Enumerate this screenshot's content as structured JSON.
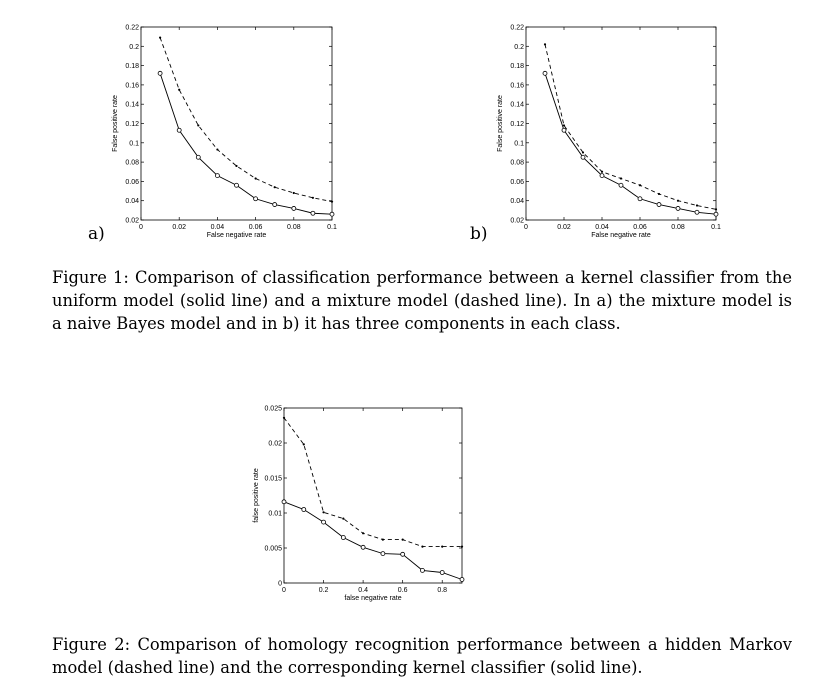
{
  "chart_data": [
    {
      "panel_label": "a)",
      "type": "line",
      "xlabel": "False negative rate",
      "ylabel": "False positive rate",
      "xlim": [
        0,
        0.1
      ],
      "ylim": [
        0.02,
        0.22
      ],
      "xticks": [
        0,
        0.02,
        0.04,
        0.06,
        0.08,
        0.1
      ],
      "xtick_labels": [
        "0",
        "0.02",
        "0.04",
        "0.06",
        "0.08",
        "0.1"
      ],
      "yticks": [
        0.02,
        0.04,
        0.06,
        0.08,
        0.1,
        0.12,
        0.14,
        0.16,
        0.18,
        0.2,
        0.22
      ],
      "ytick_labels": [
        "0.02",
        "0.04",
        "0.06",
        "0.08",
        "0.1",
        "0.12",
        "0.14",
        "0.16",
        "0.18",
        "0.2",
        "0.22"
      ],
      "grid": false,
      "series": [
        {
          "style": "solid",
          "marker": "circle",
          "x": [
            0.01,
            0.02,
            0.03,
            0.04,
            0.05,
            0.06,
            0.07,
            0.08,
            0.09,
            0.1
          ],
          "y": [
            0.172,
            0.113,
            0.085,
            0.066,
            0.056,
            0.042,
            0.036,
            0.032,
            0.027,
            0.026
          ]
        },
        {
          "style": "dashed",
          "marker": "dot",
          "x": [
            0.01,
            0.02,
            0.03,
            0.04,
            0.05,
            0.06,
            0.07,
            0.08,
            0.09,
            0.1
          ],
          "y": [
            0.209,
            0.155,
            0.118,
            0.093,
            0.076,
            0.063,
            0.054,
            0.048,
            0.043,
            0.039
          ]
        }
      ]
    },
    {
      "panel_label": "b)",
      "type": "line",
      "xlabel": "False negative rate",
      "ylabel": "False positive rate",
      "xlim": [
        0,
        0.1
      ],
      "ylim": [
        0.02,
        0.22
      ],
      "xticks": [
        0,
        0.02,
        0.04,
        0.06,
        0.08,
        0.1
      ],
      "xtick_labels": [
        "0",
        "0.02",
        "0.04",
        "0.06",
        "0.08",
        "0.1"
      ],
      "yticks": [
        0.02,
        0.04,
        0.06,
        0.08,
        0.1,
        0.12,
        0.14,
        0.16,
        0.18,
        0.2,
        0.22
      ],
      "ytick_labels": [
        "0.02",
        "0.04",
        "0.06",
        "0.08",
        "0.1",
        "0.12",
        "0.14",
        "0.16",
        "0.18",
        "0.2",
        "0.22"
      ],
      "grid": false,
      "series": [
        {
          "style": "solid",
          "marker": "circle",
          "x": [
            0.01,
            0.02,
            0.03,
            0.04,
            0.05,
            0.06,
            0.07,
            0.08,
            0.09,
            0.1
          ],
          "y": [
            0.172,
            0.113,
            0.085,
            0.066,
            0.056,
            0.042,
            0.036,
            0.032,
            0.028,
            0.026
          ]
        },
        {
          "style": "dashed",
          "marker": "dot",
          "x": [
            0.01,
            0.02,
            0.03,
            0.04,
            0.05,
            0.06,
            0.07,
            0.08,
            0.09,
            0.1
          ],
          "y": [
            0.202,
            0.118,
            0.09,
            0.07,
            0.063,
            0.056,
            0.047,
            0.04,
            0.035,
            0.031
          ]
        }
      ]
    },
    {
      "type": "line",
      "xlabel": "false negative rate",
      "ylabel": "false positive rate",
      "xlim": [
        0,
        0.9
      ],
      "ylim": [
        0,
        0.025
      ],
      "xticks": [
        0,
        0.2,
        0.4,
        0.6,
        0.8
      ],
      "xtick_labels": [
        "0",
        "0.2",
        "0.4",
        "0.6",
        "0.8"
      ],
      "yticks": [
        0,
        0.005,
        0.01,
        0.015,
        0.02,
        0.025
      ],
      "ytick_labels": [
        "0",
        "0.005",
        "0.01",
        "0.015",
        "0.02",
        "0.025"
      ],
      "grid": false,
      "series": [
        {
          "style": "solid",
          "marker": "circle",
          "x": [
            0,
            0.1,
            0.2,
            0.3,
            0.4,
            0.5,
            0.6,
            0.7,
            0.8,
            0.9
          ],
          "y": [
            0.0116,
            0.0105,
            0.0087,
            0.0065,
            0.0051,
            0.0042,
            0.0041,
            0.0018,
            0.0015,
            0.0005
          ]
        },
        {
          "style": "dashed",
          "marker": "dot",
          "x": [
            0,
            0.1,
            0.2,
            0.3,
            0.4,
            0.5,
            0.6,
            0.7,
            0.8,
            0.9
          ],
          "y": [
            0.0236,
            0.0198,
            0.0101,
            0.0092,
            0.0071,
            0.0062,
            0.0062,
            0.0052,
            0.0052,
            0.0052
          ]
        }
      ]
    }
  ],
  "captions": {
    "figure1": "Figure 1: Comparison of classification performance between a kernel classifier from the uniform model (solid line) and a mixture model (dashed line). In a) the mixture model is a naive Bayes model and in b) it has three components in each class.",
    "figure2": "Figure 2: Comparison of homology recognition performance between a hidden Markov model (dashed line) and the corresponding kernel classifier (solid line)."
  }
}
